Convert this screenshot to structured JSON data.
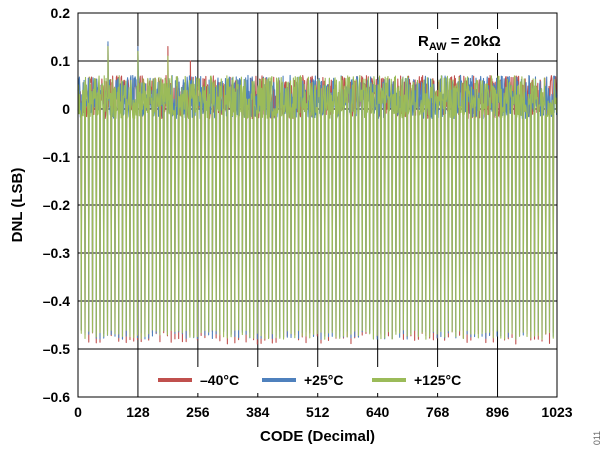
{
  "chart_data": {
    "type": "line",
    "xlabel": "CODE (Decimal)",
    "ylabel": "DNL (LSB)",
    "xlim": [
      0,
      1023
    ],
    "ylim": [
      -0.6,
      0.2
    ],
    "x_ticks": [
      0,
      128,
      256,
      384,
      512,
      640,
      768,
      896,
      1023
    ],
    "x_tick_labels": [
      "0",
      "128",
      "256",
      "384",
      "512",
      "640",
      "768",
      "896",
      "1023"
    ],
    "y_ticks": [
      -0.6,
      -0.5,
      -0.4,
      -0.3,
      -0.2,
      -0.1,
      0,
      0.1,
      0.2
    ],
    "y_tick_labels": [
      "–0.6",
      "–0.5",
      "–0.4",
      "–0.3",
      "–0.2",
      "–0.1",
      "0",
      "0.1",
      "0.2"
    ],
    "grid": true,
    "legend_position": "bottom",
    "annotation": {
      "main": "R",
      "sub": "AW",
      "rest": " = 20kΩ"
    },
    "series": [
      {
        "name": "–40°C",
        "color": "#c0504d",
        "baseline_range": [
          -0.02,
          0.07
        ],
        "low_range": [
          -0.49,
          -0.46
        ],
        "notable_peaks": [
          {
            "x": 64,
            "y": 0.135
          },
          {
            "x": 128,
            "y": 0.13
          },
          {
            "x": 192,
            "y": 0.13
          },
          {
            "x": 240,
            "y": 0.1
          }
        ]
      },
      {
        "name": "+25°C",
        "color": "#4f81bd",
        "baseline_range": [
          -0.02,
          0.07
        ],
        "low_range": [
          -0.48,
          -0.46
        ],
        "notable_peaks": [
          {
            "x": 64,
            "y": 0.14
          },
          {
            "x": 128,
            "y": 0.13
          }
        ]
      },
      {
        "name": "+125°C",
        "color": "#9bbb59",
        "baseline_range": [
          -0.02,
          0.07
        ],
        "low_range": [
          -0.48,
          -0.46
        ],
        "notable_peaks": [
          {
            "x": 64,
            "y": 0.13
          },
          {
            "x": 128,
            "y": 0.12
          },
          {
            "x": 192,
            "y": 0.11
          }
        ]
      }
    ]
  },
  "figure_id": "011"
}
